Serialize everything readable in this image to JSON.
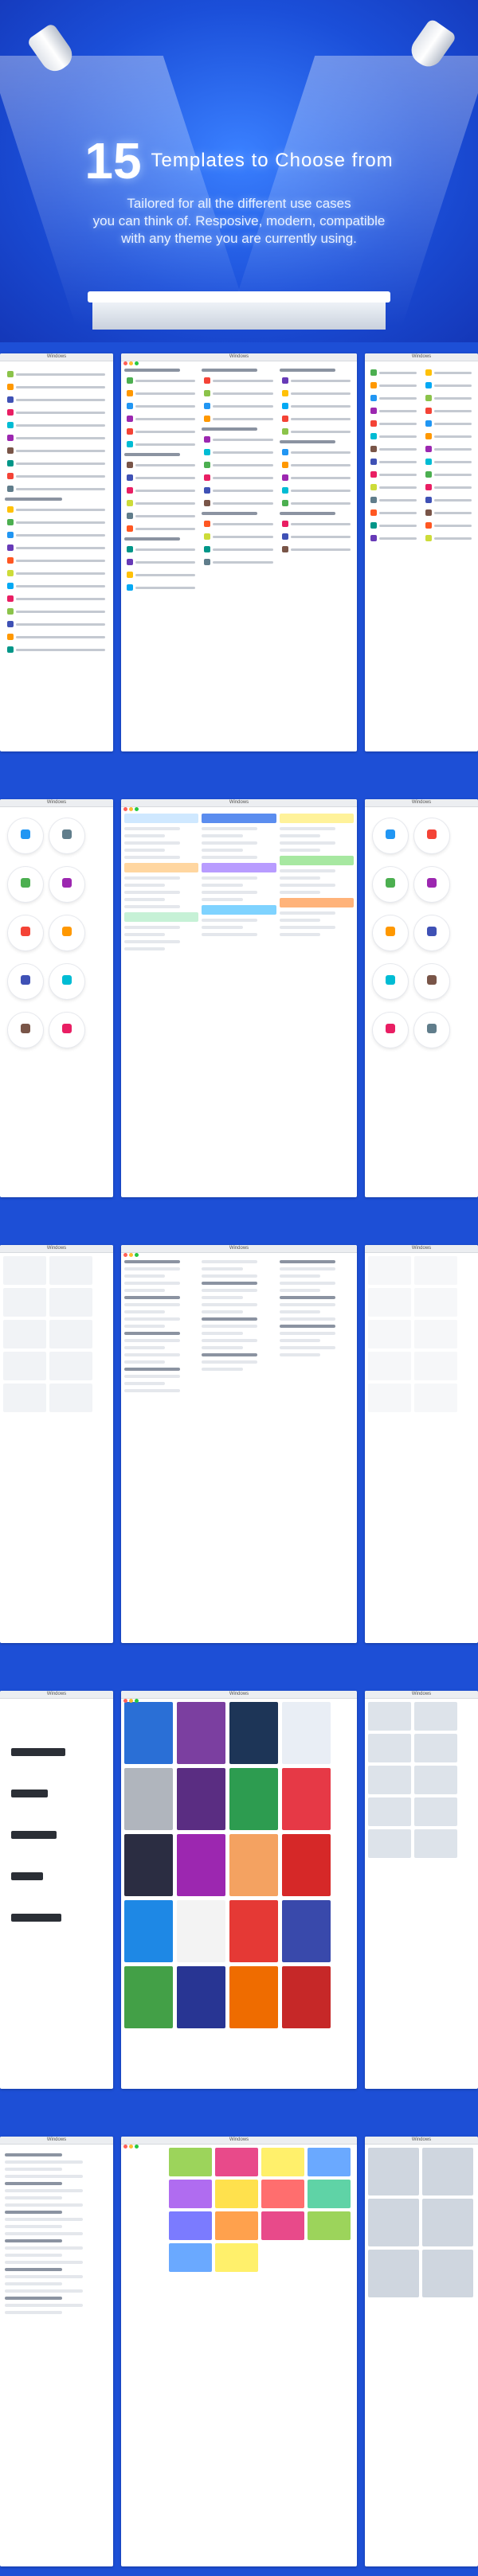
{
  "hero": {
    "number": "15",
    "title": "Templates to Choose from",
    "subtitle_lines": [
      "Tailored for all the different use cases",
      "you can think of. Resposive, modern, compatible",
      "with any theme you are currently using."
    ]
  },
  "colors": {
    "background": "#1d4fd6",
    "traffic_red": "#ff5f57",
    "traffic_yellow": "#febc2e",
    "traffic_green": "#28c840"
  },
  "screenshots": {
    "bar_label": "Windows"
  }
}
